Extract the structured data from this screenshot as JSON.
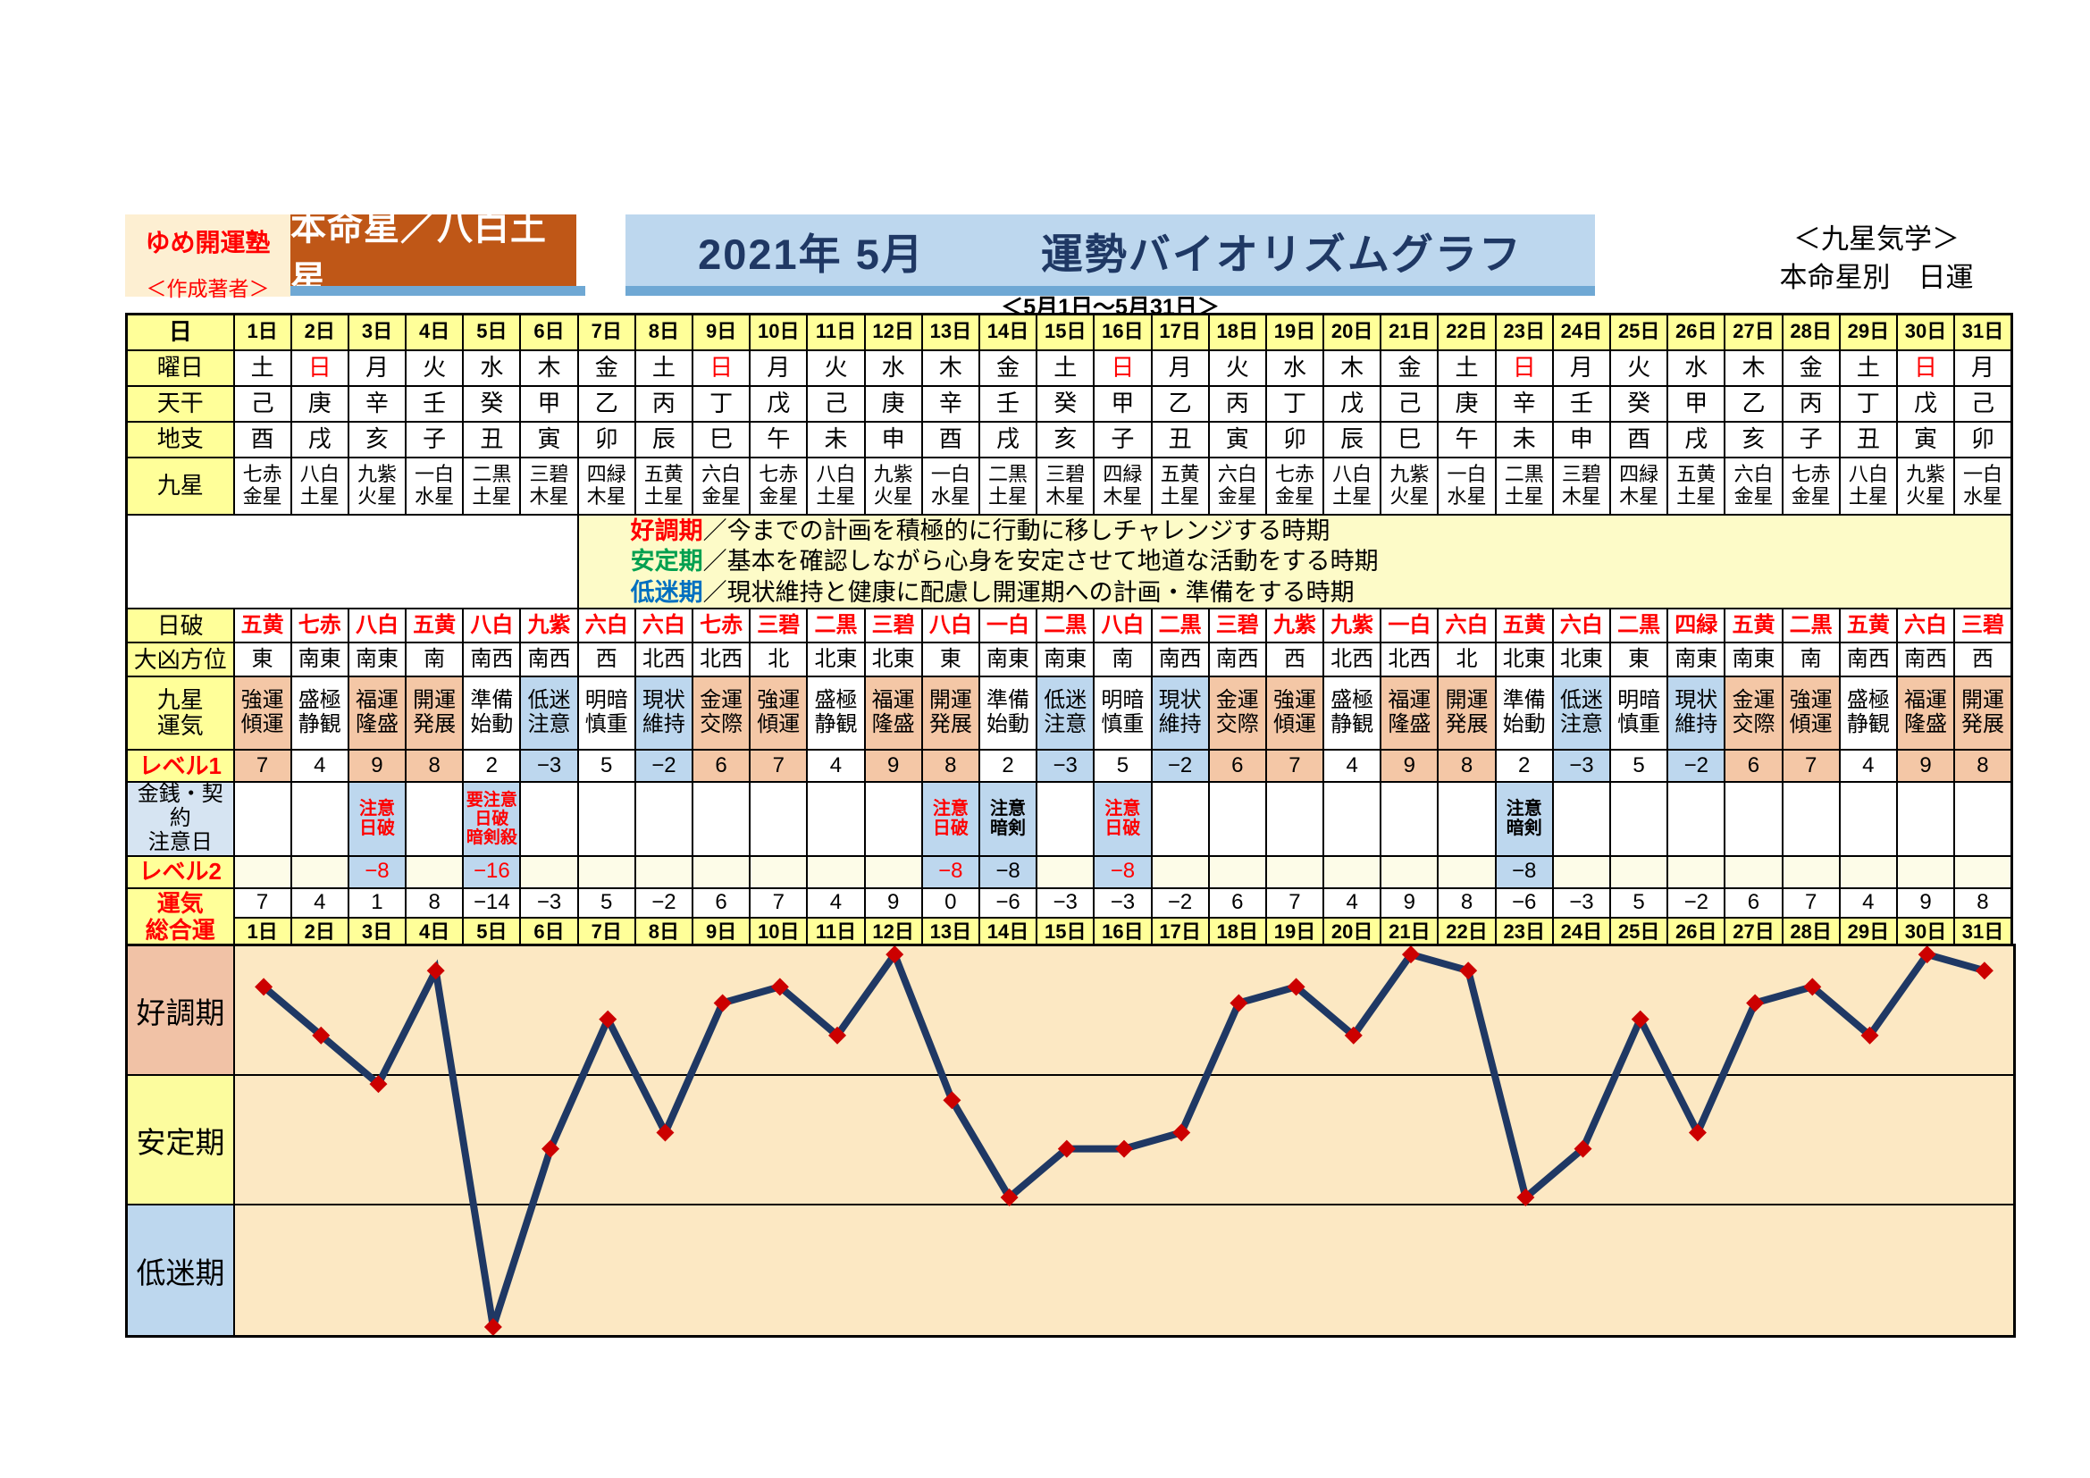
{
  "header": {
    "school": "ゆめ開運塾",
    "author": "＜作成著者＞",
    "honmei": "本命星／八白土星",
    "title_year_month": "2021年 5月",
    "title_main": "運勢バイオリズムグラフ",
    "subtitle_right_1": "＜九星気学＞",
    "subtitle_right_2": "本命星別　日運",
    "date_range": "＜5月1日～5月31日＞"
  },
  "legend": {
    "items": [
      {
        "term": "好調期",
        "color": "#FF0000",
        "desc": "／今までの計画を積極的に行動に移しチャレンジする時期"
      },
      {
        "term": "安定期",
        "color": "#00A050",
        "desc": "／基本を確認しながら心身を安定させて地道な活動をする時期"
      },
      {
        "term": "低迷期",
        "color": "#0070C0",
        "desc": "／現状維持と健康に配慮し開運期への計画・準備をする時期"
      }
    ]
  },
  "table": {
    "labels": {
      "day": "日",
      "weekday": "曜日",
      "tenkan": "天干",
      "chishi": "地支",
      "kyusei": "九星",
      "nichiha": "日破",
      "daikyo": "大凶方位",
      "unki": "九星\n運気",
      "level1": "レベル1",
      "caution": "金銭・契約\n注意日",
      "level2": "レベル2",
      "sogo": "運気\n総合運"
    },
    "days": [
      "1日",
      "2日",
      "3日",
      "4日",
      "5日",
      "6日",
      "7日",
      "8日",
      "9日",
      "10日",
      "11日",
      "12日",
      "13日",
      "14日",
      "15日",
      "16日",
      "17日",
      "18日",
      "19日",
      "20日",
      "21日",
      "22日",
      "23日",
      "24日",
      "25日",
      "26日",
      "27日",
      "28日",
      "29日",
      "30日",
      "31日"
    ],
    "weekday": [
      "土",
      "日",
      "月",
      "火",
      "水",
      "木",
      "金",
      "土",
      "日",
      "月",
      "火",
      "水",
      "木",
      "金",
      "土",
      "日",
      "月",
      "火",
      "水",
      "木",
      "金",
      "土",
      "日",
      "月",
      "火",
      "水",
      "木",
      "金",
      "土",
      "日",
      "月"
    ],
    "sunday_color": "#FF0000",
    "tenkan": [
      "己",
      "庚",
      "辛",
      "壬",
      "癸",
      "甲",
      "乙",
      "丙",
      "丁",
      "戊",
      "己",
      "庚",
      "辛",
      "壬",
      "癸",
      "甲",
      "乙",
      "丙",
      "丁",
      "戊",
      "己",
      "庚",
      "辛",
      "壬",
      "癸",
      "甲",
      "乙",
      "丙",
      "丁",
      "戊",
      "己"
    ],
    "chishi": [
      "酉",
      "戌",
      "亥",
      "子",
      "丑",
      "寅",
      "卯",
      "辰",
      "巳",
      "午",
      "未",
      "申",
      "酉",
      "戌",
      "亥",
      "子",
      "丑",
      "寅",
      "卯",
      "辰",
      "巳",
      "午",
      "未",
      "申",
      "酉",
      "戌",
      "亥",
      "子",
      "丑",
      "寅",
      "卯"
    ],
    "kyusei": [
      "七赤金星",
      "八白土星",
      "九紫火星",
      "一白水星",
      "二黒土星",
      "三碧木星",
      "四緑木星",
      "五黄土星",
      "六白金星",
      "七赤金星",
      "八白土星",
      "九紫火星",
      "一白水星",
      "二黒土星",
      "三碧木星",
      "四緑木星",
      "五黄土星",
      "六白金星",
      "七赤金星",
      "八白土星",
      "九紫火星",
      "一白水星",
      "二黒土星",
      "三碧木星",
      "四緑木星",
      "五黄土星",
      "六白金星",
      "七赤金星",
      "八白土星",
      "九紫火星",
      "一白水星"
    ],
    "nichiha": [
      "五黄",
      "七赤",
      "八白",
      "五黄",
      "八白",
      "九紫",
      "六白",
      "六白",
      "七赤",
      "三碧",
      "二黒",
      "三碧",
      "八白",
      "一白",
      "二黒",
      "八白",
      "二黒",
      "三碧",
      "九紫",
      "九紫",
      "一白",
      "六白",
      "五黄",
      "六白",
      "二黒",
      "四緑",
      "五黄",
      "二黒",
      "五黄",
      "六白",
      "三碧"
    ],
    "daikyo": [
      "東",
      "南東",
      "南東",
      "南",
      "南西",
      "南西",
      "西",
      "北西",
      "北西",
      "北",
      "北東",
      "北東",
      "東",
      "南東",
      "南東",
      "南",
      "南西",
      "南西",
      "西",
      "北西",
      "北西",
      "北",
      "北東",
      "北東",
      "東",
      "南東",
      "南東",
      "南",
      "南西",
      "南西",
      "西"
    ],
    "unki": [
      "強運傾運",
      "盛極静観",
      "福運隆盛",
      "開運発展",
      "準備始動",
      "低迷注意",
      "明暗慎重",
      "現状維持",
      "金運交際",
      "強運傾運",
      "盛極静観",
      "福運隆盛",
      "開運発展",
      "準備始動",
      "低迷注意",
      "明暗慎重",
      "現状維持",
      "金運交際",
      "強運傾運",
      "盛極静観",
      "福運隆盛",
      "開運発展",
      "準備始動",
      "低迷注意",
      "明暗慎重",
      "現状維持",
      "金運交際",
      "強運傾運",
      "盛極静観",
      "福運隆盛",
      "開運発展"
    ],
    "unki_tone": [
      "s",
      "n",
      "s",
      "s",
      "n",
      "b",
      "n",
      "b",
      "s",
      "s",
      "n",
      "s",
      "s",
      "n",
      "b",
      "n",
      "b",
      "s",
      "s",
      "n",
      "s",
      "s",
      "n",
      "b",
      "n",
      "b",
      "s",
      "s",
      "n",
      "s",
      "s"
    ],
    "level1": [
      "7",
      "4",
      "9",
      "8",
      "2",
      "−3",
      "5",
      "−2",
      "6",
      "7",
      "4",
      "9",
      "8",
      "2",
      "−3",
      "5",
      "−2",
      "6",
      "7",
      "4",
      "9",
      "8",
      "2",
      "−3",
      "5",
      "−2",
      "6",
      "7",
      "4",
      "9",
      "8"
    ],
    "caution": [
      null,
      null,
      {
        "t": "注意\n日破",
        "c": "red"
      },
      null,
      {
        "t": "要注意\n日破\n暗剣殺",
        "c": "red",
        "small": true
      },
      null,
      null,
      null,
      null,
      null,
      null,
      null,
      {
        "t": "注意\n日破",
        "c": "red"
      },
      {
        "t": "注意\n暗剣",
        "c": "black"
      },
      null,
      {
        "t": "注意\n日破",
        "c": "red"
      },
      null,
      null,
      null,
      null,
      null,
      null,
      {
        "t": "注意\n暗剣",
        "c": "black"
      },
      null,
      null,
      null,
      null,
      null,
      null,
      null,
      null
    ],
    "level2": [
      null,
      null,
      {
        "t": "−8",
        "c": "red"
      },
      null,
      {
        "t": "−16",
        "c": "red"
      },
      null,
      null,
      null,
      null,
      null,
      null,
      null,
      {
        "t": "−8",
        "c": "red"
      },
      {
        "t": "−8",
        "c": "black"
      },
      null,
      {
        "t": "−8",
        "c": "red"
      },
      null,
      null,
      null,
      null,
      null,
      null,
      {
        "t": "−8",
        "c": "black"
      },
      null,
      null,
      null,
      null,
      null,
      null,
      null,
      null
    ],
    "sogo": [
      "7",
      "4",
      "1",
      "8",
      "−14",
      "−3",
      "5",
      "−2",
      "6",
      "7",
      "4",
      "9",
      "0",
      "−6",
      "−3",
      "−3",
      "−2",
      "6",
      "7",
      "4",
      "9",
      "8",
      "−6",
      "−3",
      "5",
      "−2",
      "6",
      "7",
      "4",
      "9",
      "8"
    ]
  },
  "chart_data": {
    "type": "line",
    "title": "運勢バイオリズムグラフ 2021年5月",
    "series_name": "運気総合運",
    "categories": [
      1,
      2,
      3,
      4,
      5,
      6,
      7,
      8,
      9,
      10,
      11,
      12,
      13,
      14,
      15,
      16,
      17,
      18,
      19,
      20,
      21,
      22,
      23,
      24,
      25,
      26,
      27,
      28,
      29,
      30,
      31
    ],
    "values": [
      7,
      4,
      1,
      8,
      -14,
      -3,
      5,
      -2,
      6,
      7,
      4,
      9,
      0,
      -6,
      -3,
      -3,
      -2,
      6,
      7,
      4,
      9,
      8,
      -6,
      -3,
      5,
      -2,
      6,
      7,
      4,
      9,
      8
    ],
    "ylim": [
      -14.5,
      9.5
    ],
    "band_boundaries": [
      1.5,
      -6.5
    ],
    "bands": [
      {
        "label": "好調期",
        "color": "#F1C2A6"
      },
      {
        "label": "安定期",
        "color": "#FCFC9E"
      },
      {
        "label": "低迷期",
        "color": "#BDD7EE"
      }
    ],
    "grid": "band-lines-only",
    "legend_position": "none",
    "line_color": "#1F3864",
    "marker": "diamond",
    "marker_color": "#CC0000",
    "plot_bg": "#FCE8C3"
  }
}
